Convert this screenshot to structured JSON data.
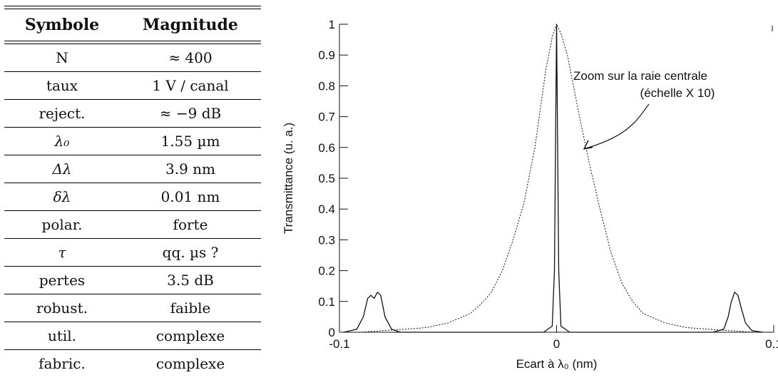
{
  "table": {
    "headers": [
      "Symbole",
      "Magnitude"
    ],
    "rows": [
      [
        "N",
        "≈ 400"
      ],
      [
        "taux",
        "1 V / canal"
      ],
      [
        "reject.",
        "≈ −9 dB"
      ],
      [
        "λ₀",
        "1.55 µm"
      ],
      [
        "Δλ",
        "3.9 nm"
      ],
      [
        "δλ",
        "0.01 nm"
      ],
      [
        "polar.",
        "forte"
      ],
      [
        "τ",
        "qq. µs ?"
      ],
      [
        "pertes",
        "3.5 dB"
      ],
      [
        "robust.",
        "faible"
      ],
      [
        "util.",
        "complexe"
      ],
      [
        "fabric.",
        "complexe"
      ]
    ]
  },
  "chart_data": {
    "type": "line",
    "xlabel": "Ecart à λ₀ (nm)",
    "ylabel": "Transmittance (u. a.)",
    "xlim": [
      -0.1,
      0.1
    ],
    "ylim": [
      0,
      1
    ],
    "x_ticks": [
      -0.1,
      0,
      0.1
    ],
    "x_tick_labels": [
      "-0.1",
      "0",
      "0.1"
    ],
    "y_ticks": [
      0,
      0.1,
      0.2,
      0.3,
      0.4,
      0.5,
      0.6,
      0.7,
      0.8,
      0.9,
      1
    ],
    "y_tick_labels": [
      "0",
      "0.1",
      "0.2",
      "0.3",
      "0.4",
      "0.5",
      "0.6",
      "0.7",
      "0.8",
      "0.9",
      "1"
    ],
    "annotation": {
      "lines": [
        "Zoom sur la raie centrale",
        "(échelle X 10)"
      ],
      "points_to": [
        0.012,
        0.6
      ]
    },
    "series": [
      {
        "style": "solid",
        "x": [
          -0.098,
          -0.092,
          -0.089,
          -0.087,
          -0.0855,
          -0.084,
          -0.0825,
          -0.081,
          -0.079,
          -0.076,
          -0.072,
          -0.006,
          -0.002,
          -0.001,
          -0.0005,
          0,
          0.0005,
          0.001,
          0.002,
          0.006,
          0.072,
          0.077,
          0.079,
          0.0805,
          0.082,
          0.0835,
          0.085,
          0.087,
          0.09,
          0.095
        ],
        "y": [
          0,
          0.01,
          0.05,
          0.11,
          0.12,
          0.11,
          0.13,
          0.12,
          0.05,
          0.01,
          0,
          0,
          0.02,
          0.2,
          0.6,
          1.0,
          0.6,
          0.2,
          0.02,
          0,
          0,
          0.01,
          0.05,
          0.1,
          0.13,
          0.12,
          0.08,
          0.03,
          0.005,
          0
        ]
      },
      {
        "style": "dotted",
        "x": [
          -0.1,
          -0.09,
          -0.08,
          -0.07,
          -0.06,
          -0.05,
          -0.04,
          -0.035,
          -0.03,
          -0.025,
          -0.02,
          -0.015,
          -0.01,
          -0.005,
          -0.002,
          0,
          0.002,
          0.005,
          0.01,
          0.015,
          0.02,
          0.025,
          0.03,
          0.035,
          0.04,
          0.05,
          0.06,
          0.07,
          0.08,
          0.09,
          0.1
        ],
        "y": [
          0.0,
          0.0,
          0.005,
          0.01,
          0.015,
          0.03,
          0.06,
          0.09,
          0.13,
          0.2,
          0.3,
          0.42,
          0.6,
          0.85,
          0.96,
          1.0,
          0.97,
          0.9,
          0.72,
          0.55,
          0.4,
          0.26,
          0.16,
          0.1,
          0.06,
          0.03,
          0.015,
          0.01,
          0.005,
          0.0,
          0.0
        ]
      }
    ]
  }
}
